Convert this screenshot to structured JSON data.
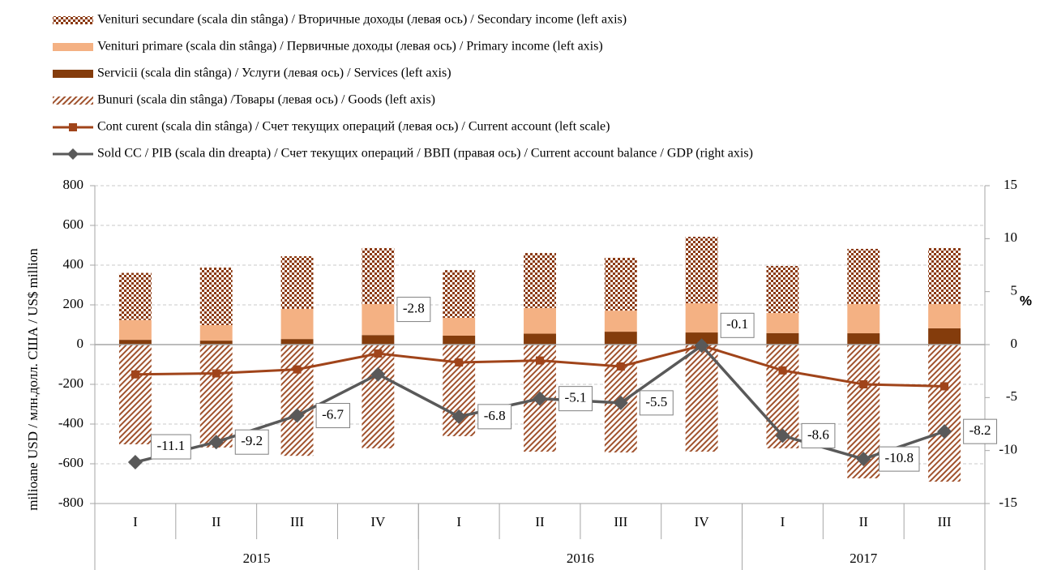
{
  "chart_data": {
    "type": "bar",
    "y_label": "milioane USD / млн.долл. США / US$ million",
    "y2_label": "%",
    "groups": [
      {
        "name": "2015",
        "categories": [
          "I",
          "II",
          "III",
          "IV"
        ]
      },
      {
        "name": "2016",
        "categories": [
          "I",
          "II",
          "III",
          "IV"
        ]
      },
      {
        "name": "2017",
        "categories": [
          "I",
          "II",
          "III"
        ]
      }
    ],
    "series": [
      {
        "name": "Venituri secundare (scala din stânga) / Вторичные доходы (левая ось) / Secondary income (left axis)",
        "type": "bar",
        "pattern": "checker",
        "color": "#8b3a12",
        "values": [
          237,
          290,
          265,
          282,
          240,
          277,
          266,
          335,
          237,
          278,
          282
        ]
      },
      {
        "name": "Venituri primare (scala din stânga) / Первичные доходы (левая ось) / Primary income (left axis)",
        "type": "bar",
        "color": "#f4b183",
        "values": [
          100,
          78,
          152,
          156,
          90,
          129,
          106,
          147,
          101,
          147,
          122
        ]
      },
      {
        "name": "Servicii (scala din stânga) / Услуги (левая ось) / Services (left axis)",
        "type": "bar",
        "color": "#843c0c",
        "values": [
          24,
          20,
          28,
          48,
          45,
          55,
          65,
          61,
          58,
          57,
          82
        ]
      },
      {
        "name": "Bunuri (scala din stânga) /Товары (левая ось) / Goods (left axis)",
        "type": "bar",
        "pattern": "hatch",
        "color": "#a0522d",
        "values": [
          -502,
          -518,
          -560,
          -522,
          -461,
          -539,
          -543,
          -539,
          -522,
          -673,
          -690
        ]
      },
      {
        "name": "Cont curent (scala din stânga) / Счет текущих операций (левая ось) / Current account (left scale)",
        "type": "line",
        "marker": "square",
        "color": "#a0441a",
        "values": [
          -150,
          -145,
          -125,
          -45,
          -90,
          -80,
          -110,
          -5,
          -130,
          -200,
          -210
        ]
      },
      {
        "name": "Sold CC / PIB (scala din dreapta) / Счет текущих операций / ВВП (правая ось) / Current account balance / GDP (right axis)",
        "type": "line",
        "marker": "diamond",
        "axis": "y2",
        "color": "#595959",
        "data_labels": true,
        "values": [
          -11.1,
          -9.2,
          -6.7,
          -2.8,
          -6.8,
          -5.1,
          -5.5,
          -0.1,
          -8.6,
          -10.8,
          -8.2
        ]
      }
    ],
    "ylim": [
      -800,
      800
    ],
    "yticks": [
      -800,
      -600,
      -400,
      -200,
      0,
      200,
      400,
      600,
      800
    ],
    "y2lim": [
      -15,
      15
    ],
    "y2ticks": [
      -15,
      -10,
      -5,
      0,
      5,
      10,
      15
    ],
    "grid": true
  }
}
